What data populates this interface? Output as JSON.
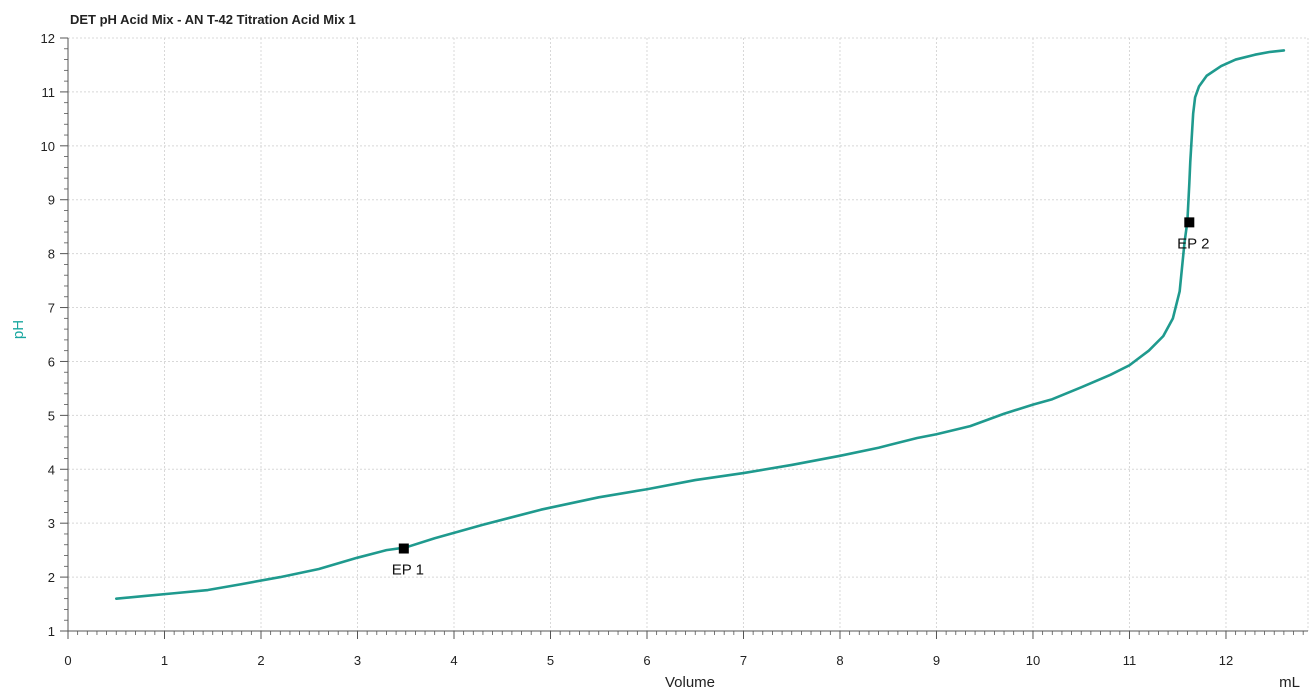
{
  "chart_data": {
    "type": "line",
    "title": "DET pH Acid Mix - AN T-42 Titration Acid Mix  1",
    "xlabel": "Volume",
    "xunit": "mL",
    "ylabel": "pH",
    "xlim": [
      0,
      12.85
    ],
    "ylim": [
      1,
      12
    ],
    "xticks": [
      0,
      1,
      2,
      3,
      4,
      5,
      6,
      7,
      8,
      9,
      10,
      11,
      12
    ],
    "yticks": [
      1,
      2,
      3,
      4,
      5,
      6,
      7,
      8,
      9,
      10,
      11,
      12
    ],
    "grid": true,
    "colors": {
      "series": "#1f9a8e",
      "ylabel": "#1aa7a0",
      "grid": "#d8d8d8",
      "axis": "#555555",
      "marker": "#000000"
    },
    "series": [
      {
        "x": [
          0.5,
          0.8,
          1.1,
          1.45,
          1.8,
          2.2,
          2.6,
          3.0,
          3.3,
          3.5,
          3.8,
          4.3,
          4.9,
          5.5,
          6.0,
          6.5,
          7.0,
          7.5,
          8.0,
          8.4,
          8.8,
          9.0,
          9.35,
          9.7,
          10.0,
          10.2,
          10.5,
          10.8,
          11.0,
          11.2,
          11.35,
          11.45,
          11.52,
          11.57,
          11.6,
          11.62,
          11.63,
          11.64,
          11.65,
          11.66,
          11.68,
          11.72,
          11.8,
          11.95,
          12.1,
          12.3,
          12.45,
          12.6
        ],
        "y": [
          1.6,
          1.65,
          1.7,
          1.76,
          1.87,
          2.0,
          2.15,
          2.36,
          2.5,
          2.55,
          2.72,
          2.97,
          3.25,
          3.48,
          3.63,
          3.8,
          3.93,
          4.08,
          4.25,
          4.4,
          4.58,
          4.65,
          4.8,
          5.03,
          5.2,
          5.3,
          5.52,
          5.75,
          5.93,
          6.2,
          6.47,
          6.8,
          7.3,
          8.2,
          8.6,
          9.3,
          9.7,
          10.0,
          10.3,
          10.6,
          10.9,
          11.1,
          11.3,
          11.48,
          11.6,
          11.69,
          11.74,
          11.77
        ]
      }
    ],
    "endpoints": [
      {
        "label": "EP 1",
        "x": 3.48,
        "y": 2.53
      },
      {
        "label": "EP 2",
        "x": 11.62,
        "y": 8.58
      }
    ]
  }
}
